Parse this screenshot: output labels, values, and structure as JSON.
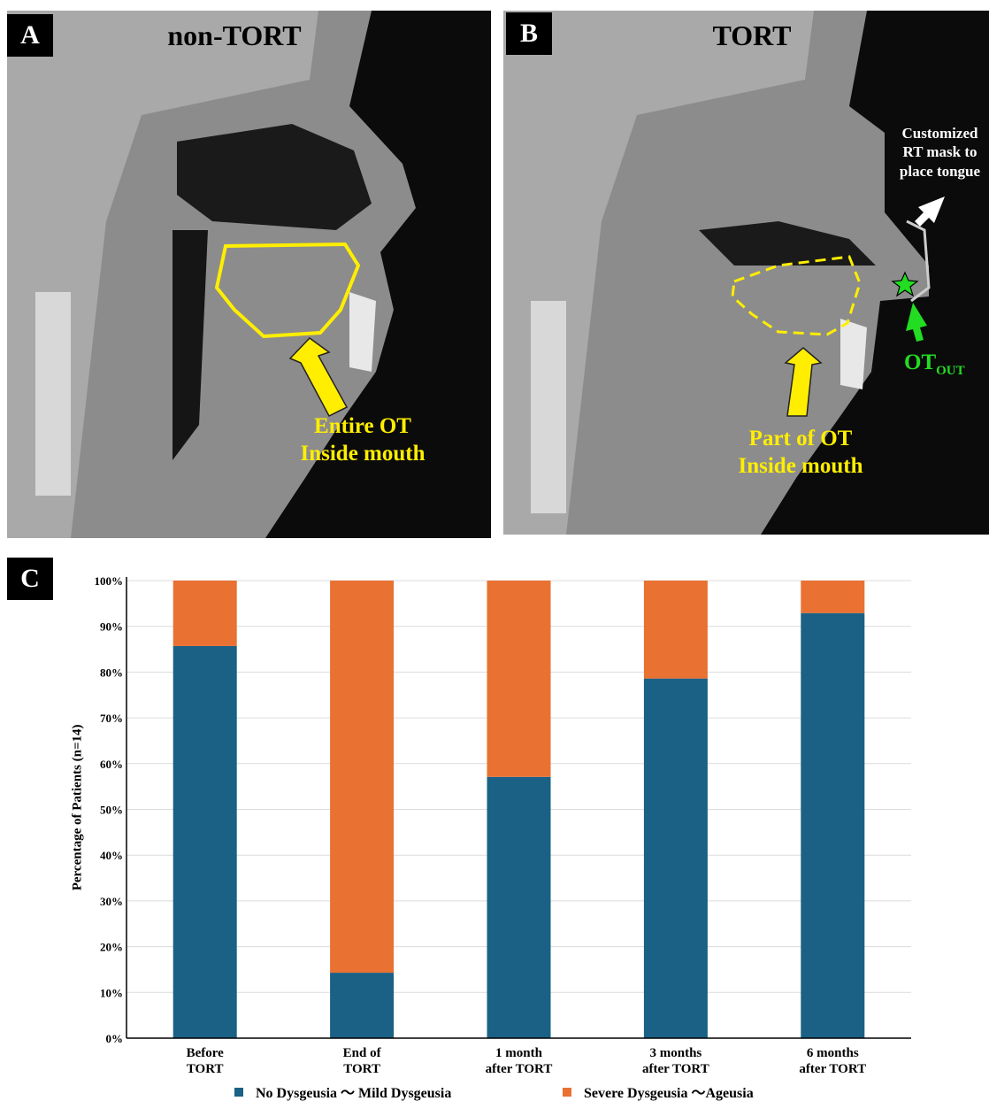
{
  "panels": {
    "a": {
      "letter": "A",
      "title": "non-TORT",
      "annotation": "Entire OT\nInside mouth"
    },
    "b": {
      "letter": "B",
      "title": "TORT",
      "mask_note": "Customized\nRT mask to\nplace tongue",
      "annotation": "Part of OT\nInside mouth",
      "ot_label": "OT",
      "ot_sub": "OUT"
    },
    "c": {
      "letter": "C"
    }
  },
  "chart_data": {
    "type": "stacked_bar",
    "y_label": "Percentage of Patients (n=14)",
    "categories": [
      "Before\nTORT",
      "End of\nTORT",
      "1 month\nafter TORT",
      "3 months\nafter TORT",
      "6 months\nafter TORT"
    ],
    "series": [
      {
        "name": "No Dysgeusia 〜 Mild Dysgeusia",
        "color": "#1a6185",
        "values": [
          85.7,
          14.3,
          57.1,
          78.6,
          92.9
        ]
      },
      {
        "name": "Severe Dysgeusia 〜Ageusia",
        "color": "#e97132",
        "values": [
          14.3,
          85.7,
          42.9,
          21.4,
          7.1
        ]
      }
    ],
    "ylim": [
      0,
      100
    ],
    "yticks": [
      {
        "value": 0,
        "label": "0%"
      },
      {
        "value": 10,
        "label": "10%"
      },
      {
        "value": 20,
        "label": "20%"
      },
      {
        "value": 30,
        "label": "30%"
      },
      {
        "value": 40,
        "label": "40%"
      },
      {
        "value": 50,
        "label": "50%"
      },
      {
        "value": 60,
        "label": "60%"
      },
      {
        "value": 70,
        "label": "70%"
      },
      {
        "value": 80,
        "label": "80%"
      },
      {
        "value": 90,
        "label": "90%"
      },
      {
        "value": 100,
        "label": "100%"
      }
    ],
    "grid": true,
    "legend": "bottom"
  }
}
